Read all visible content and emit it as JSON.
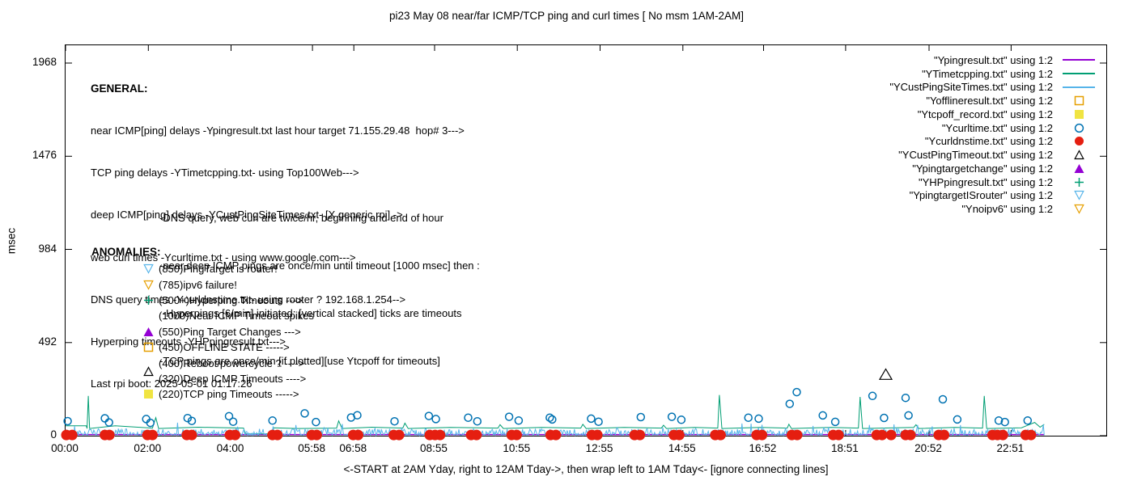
{
  "title": "pi23 May 08  near/far ICMP/TCP ping and curl times [ No msm 1AM-2AM]",
  "x_axis_label": "<-START at 2AM Yday, right to 12AM Tday->, then wrap left to 1AM Tday<- [ignore connecting lines]",
  "y_axis_label": "msec",
  "general": {
    "heading": "GENERAL:",
    "lines": [
      "near ICMP[ping] delays -Ypingresult.txt last hour target 71.155.29.48  hop# 3--->",
      "TCP ping delays -YTimetcpping.txt- using Top100Web--->",
      "deep ICMP[ping] delays -YCustPingSiteTimes.txt- [X generic rpi] ->",
      "web curl times -Ycurltime.txt - using www.google.com--->",
      "DNS query times -Ycurldnstime.txt- using router ? 192.168.1.254-->",
      "Hyperping timeouts -YHPpingresult.txt--->",
      "Last rpi boot: 2025-05-01 01:17:26"
    ],
    "notes": [
      "-DNS query, web curl are twice/hr, beginning and end of hour",
      "-near,deep ICMP pings are once/min until timeout [1000 msec] then :",
      " -Hyperpings [6/min] initiated; [vertical stacked] ticks are timeouts",
      "-TCP pings are once/min [if plotted][use Ytcpoff for timeouts]"
    ]
  },
  "anomalies": {
    "heading": "ANOMALIES:",
    "items": [
      {
        "marker": "triangle-down-open",
        "color": "#56b4e9",
        "label": "(850)PingTarget is router!"
      },
      {
        "marker": "triangle-down-open",
        "color": "#e69f00",
        "label": "(785)ipv6 failure!"
      },
      {
        "marker": "plus",
        "color": "#009e73",
        "label": "(500+)Hyperping Timeouts --->"
      },
      {
        "marker": null,
        "color": null,
        "label": "(1000)Near ICMP Timeout spikes"
      },
      {
        "marker": "triangle-up-filled",
        "color": "#9400d3",
        "label": "(550)Ping Target Changes --->"
      },
      {
        "marker": "square-open",
        "color": "#e69f00",
        "label": "(450)OFFLINE STATE ----->"
      },
      {
        "marker": null,
        "color": null,
        "label": "(400)Reboot/powercycle ? ---->"
      },
      {
        "marker": "triangle-up-open",
        "color": "#000000",
        "label": "(320)Deep ICMP Timeouts ---->",
        "raised": true
      },
      {
        "marker": "square-filled",
        "color": "#f0e442",
        "label": "(220)TCP ping Timeouts ----->"
      }
    ]
  },
  "legend": {
    "entries": [
      {
        "label": "\"Ypingresult.txt\" using 1:2",
        "key": "line",
        "color": "#9400d3"
      },
      {
        "label": "\"YTimetcpping.txt\" using 1:2",
        "key": "line",
        "color": "#009e73"
      },
      {
        "label": "\"YCustPingSiteTimes.txt\" using 1:2",
        "key": "line",
        "color": "#56b4e9"
      },
      {
        "label": "\"Yofflineresult.txt\" using 1:2",
        "key": "square-open",
        "color": "#e69f00"
      },
      {
        "label": "\"Ytcpoff_record.txt\" using 1:2",
        "key": "square-filled",
        "color": "#f0e442"
      },
      {
        "label": "\"Ycurltime.txt\" using 1:2",
        "key": "circle-open",
        "color": "#0072b2"
      },
      {
        "label": "\"Ycurldnstime.txt\" using 1:2",
        "key": "circle-filled",
        "color": "#e51e10"
      },
      {
        "label": "\"YCustPingTimeout.txt\" using 1:2",
        "key": "triangle-up-open",
        "color": "#000000"
      },
      {
        "label": "\"Ypingtargetchange\" using 1:2",
        "key": "triangle-up-filled",
        "color": "#9400d3"
      },
      {
        "label": "\"YHPpingresult.txt\" using 1:2",
        "key": "plus",
        "color": "#009e73"
      },
      {
        "label": "\"YpingtargetISrouter\" using 1:2",
        "key": "triangle-down-open",
        "color": "#56b4e9"
      },
      {
        "label": "\"Ynoipv6\" using 1:2",
        "key": "triangle-down-open",
        "color": "#e69f00"
      }
    ]
  },
  "chart_data": {
    "type": "line",
    "title": "pi23 May 08  near/far ICMP/TCP ping and curl times [ No msm 1AM-2AM]",
    "xlabel": "<-START at 2AM Yday, right to 12AM Tday->, then wrap left to 1AM Tday<- [ignore connecting lines]",
    "ylabel": "msec",
    "x_unit": "hours since plot origin (00:00 tick = 2AM yesterday)",
    "xlim": [
      0,
      25.15
    ],
    "ylim": [
      0,
      2062
    ],
    "grid": false,
    "legend_position": "top-right",
    "x_ticks": [
      {
        "label": "00:00",
        "h": 0
      },
      {
        "label": "02:00",
        "h": 2
      },
      {
        "label": "04:00",
        "h": 4
      },
      {
        "label": "05:58",
        "h": 5.967
      },
      {
        "label": "06:58",
        "h": 6.967
      },
      {
        "label": "08:55",
        "h": 8.917
      },
      {
        "label": "10:55",
        "h": 10.917
      },
      {
        "label": "12:55",
        "h": 12.917
      },
      {
        "label": "14:55",
        "h": 14.917
      },
      {
        "label": "16:52",
        "h": 16.867
      },
      {
        "label": "18:51",
        "h": 18.85
      },
      {
        "label": "20:52",
        "h": 20.867
      },
      {
        "label": "22:51",
        "h": 22.85
      }
    ],
    "y_ticks": [
      {
        "label": "0",
        "v": 0
      },
      {
        "label": "492",
        "v": 492
      },
      {
        "label": "984",
        "v": 984
      },
      {
        "label": "1476",
        "v": 1476
      },
      {
        "label": "1968",
        "v": 1968
      }
    ],
    "series": [
      {
        "name": "Ypingresult.txt (near ICMP ping delays)",
        "type": "line",
        "color": "#9400d3",
        "width": 1.5,
        "points": [
          [
            0,
            6
          ],
          [
            23.65,
            6
          ]
        ]
      },
      {
        "name": "YTimetcpping.txt (TCP ping delays)",
        "type": "line",
        "color": "#009e73",
        "width": 1,
        "points": [
          [
            0,
            52
          ],
          [
            0.5,
            52
          ],
          [
            0.52,
            38
          ],
          [
            0.55,
            210
          ],
          [
            0.58,
            38
          ],
          [
            1.2,
            52
          ],
          [
            2.1,
            40
          ],
          [
            2.18,
            95
          ],
          [
            2.25,
            38
          ],
          [
            3.2,
            45
          ],
          [
            4.3,
            40
          ],
          [
            4.35,
            10
          ],
          [
            4.98,
            10
          ],
          [
            5.03,
            42
          ],
          [
            5.6,
            38
          ],
          [
            6.55,
            40
          ],
          [
            6.6,
            78
          ],
          [
            6.68,
            38
          ],
          [
            7.4,
            45
          ],
          [
            8.15,
            40
          ],
          [
            8.2,
            66
          ],
          [
            8.28,
            38
          ],
          [
            9.3,
            44
          ],
          [
            10.45,
            40
          ],
          [
            10.5,
            58
          ],
          [
            10.58,
            38
          ],
          [
            11.5,
            44
          ],
          [
            12.45,
            40
          ],
          [
            12.5,
            60
          ],
          [
            12.58,
            38
          ],
          [
            13.5,
            44
          ],
          [
            14.4,
            40
          ],
          [
            14.45,
            55
          ],
          [
            14.52,
            38
          ],
          [
            15.2,
            44
          ],
          [
            15.76,
            40
          ],
          [
            15.8,
            215
          ],
          [
            15.86,
            38
          ],
          [
            16.8,
            44
          ],
          [
            17.44,
            40
          ],
          [
            17.48,
            60
          ],
          [
            17.54,
            38
          ],
          [
            18.5,
            44
          ],
          [
            19.16,
            40
          ],
          [
            19.2,
            205
          ],
          [
            19.26,
            38
          ],
          [
            20.5,
            44
          ],
          [
            20.55,
            58
          ],
          [
            20.62,
            38
          ],
          [
            21.5,
            44
          ],
          [
            22.16,
            40
          ],
          [
            22.2,
            210
          ],
          [
            22.26,
            38
          ],
          [
            23.1,
            42
          ],
          [
            23.42,
            70
          ],
          [
            23.55,
            45
          ],
          [
            23.65,
            60
          ]
        ]
      },
      {
        "name": "YCustPingSiteTimes.txt (deep ICMP ping delays, noisy 0-80 msec)",
        "type": "noise",
        "color": "#56b4e9",
        "width": 1,
        "noise": {
          "seed": 42,
          "start": 0,
          "end": 23.65,
          "step": 0.022,
          "base": 2,
          "amp": 34,
          "spike_chance": 0.07,
          "spike_amp": 42
        }
      },
      {
        "name": "Ycurltime.txt (web curl times)",
        "type": "scatter",
        "marker": "circle-open",
        "color": "#0072b2",
        "size": 11,
        "points": [
          [
            0.05,
            77
          ],
          [
            0.95,
            92
          ],
          [
            1.05,
            70
          ],
          [
            1.95,
            88
          ],
          [
            2.05,
            68
          ],
          [
            2.95,
            93
          ],
          [
            3.05,
            78
          ],
          [
            3.95,
            103
          ],
          [
            4.05,
            74
          ],
          [
            5.0,
            80
          ],
          [
            5.78,
            118
          ],
          [
            6.05,
            72
          ],
          [
            6.9,
            96
          ],
          [
            7.05,
            108
          ],
          [
            7.95,
            76
          ],
          [
            8.78,
            104
          ],
          [
            8.95,
            88
          ],
          [
            9.73,
            95
          ],
          [
            9.95,
            76
          ],
          [
            10.72,
            100
          ],
          [
            10.95,
            80
          ],
          [
            11.7,
            95
          ],
          [
            11.76,
            86
          ],
          [
            12.7,
            90
          ],
          [
            12.88,
            74
          ],
          [
            13.9,
            98
          ],
          [
            14.65,
            100
          ],
          [
            14.88,
            84
          ],
          [
            16.5,
            95
          ],
          [
            16.75,
            90
          ],
          [
            17.5,
            168
          ],
          [
            17.67,
            230
          ],
          [
            18.3,
            107
          ],
          [
            18.6,
            73
          ],
          [
            19.5,
            210
          ],
          [
            19.78,
            94
          ],
          [
            20.3,
            200
          ],
          [
            20.37,
            107
          ],
          [
            21.2,
            192
          ],
          [
            21.55,
            86
          ],
          [
            22.55,
            80
          ],
          [
            22.7,
            72
          ],
          [
            23.25,
            80
          ]
        ]
      },
      {
        "name": "Ycurldnstime.txt (DNS query times)",
        "type": "scatter",
        "marker": "circle-filled",
        "color": "#e51e10",
        "size": 13,
        "points": [
          [
            0.02,
            4
          ],
          [
            0.16,
            4
          ],
          [
            0.95,
            4
          ],
          [
            1.06,
            4
          ],
          [
            1.98,
            4
          ],
          [
            2.1,
            4
          ],
          [
            2.93,
            4
          ],
          [
            3.05,
            4
          ],
          [
            3.97,
            4
          ],
          [
            4.1,
            4
          ],
          [
            5.0,
            4
          ],
          [
            5.12,
            4
          ],
          [
            5.95,
            4
          ],
          [
            6.07,
            4
          ],
          [
            6.95,
            4
          ],
          [
            7.07,
            4
          ],
          [
            7.93,
            4
          ],
          [
            8.06,
            4
          ],
          [
            8.8,
            4
          ],
          [
            8.93,
            4
          ],
          [
            9.05,
            4
          ],
          [
            9.8,
            4
          ],
          [
            9.93,
            4
          ],
          [
            10.78,
            4
          ],
          [
            10.9,
            4
          ],
          [
            11.72,
            4
          ],
          [
            11.85,
            4
          ],
          [
            12.72,
            4
          ],
          [
            12.85,
            4
          ],
          [
            13.75,
            4
          ],
          [
            13.88,
            4
          ],
          [
            14.7,
            4
          ],
          [
            14.83,
            4
          ],
          [
            15.7,
            4
          ],
          [
            15.83,
            4
          ],
          [
            16.7,
            4
          ],
          [
            16.83,
            4
          ],
          [
            17.55,
            4
          ],
          [
            17.68,
            4
          ],
          [
            18.55,
            4
          ],
          [
            18.68,
            4
          ],
          [
            19.6,
            4
          ],
          [
            19.73,
            4
          ],
          [
            19.95,
            4
          ],
          [
            20.3,
            4
          ],
          [
            20.42,
            4
          ],
          [
            21.1,
            4
          ],
          [
            21.23,
            4
          ],
          [
            22.4,
            4
          ],
          [
            22.52,
            4
          ],
          [
            22.65,
            4
          ],
          [
            23.2,
            4
          ],
          [
            23.33,
            4
          ]
        ]
      },
      {
        "name": "YCustPingTimeout.txt (deep ICMP timeout)",
        "type": "scatter",
        "marker": "triangle-up-open",
        "color": "#000000",
        "size": 15,
        "points": [
          [
            19.82,
            320
          ]
        ]
      }
    ]
  }
}
